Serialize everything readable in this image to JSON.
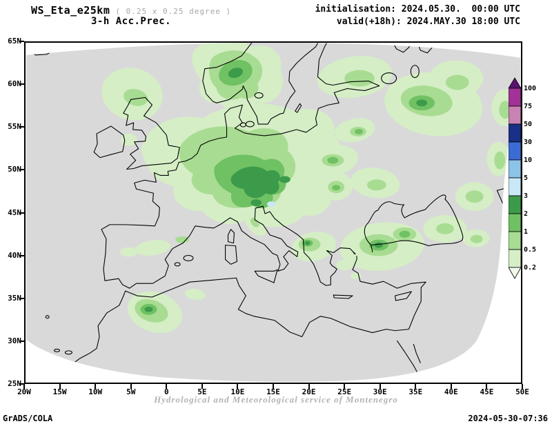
{
  "header": {
    "model": "WS_Eta_e25km",
    "grid": "( 0.25 x 0.25 degree )",
    "product": "3-h Acc.Prec.",
    "init_line": "initialisation: 2024.05.30.  00:00 UTC",
    "valid_line": "valid(+18h): 2024.MAY.30 18:00 UTC"
  },
  "map": {
    "lat_labels": [
      "65N",
      "60N",
      "55N",
      "50N",
      "45N",
      "40N",
      "35N",
      "30N",
      "25N"
    ],
    "lon_labels": [
      "20W",
      "15W",
      "10W",
      "5W",
      "0",
      "5E",
      "10E",
      "15E",
      "20E",
      "25E",
      "30E",
      "35E",
      "40E",
      "45E",
      "50E"
    ],
    "background_color": "#d9d9d9",
    "coastline_color": "#000000"
  },
  "colorbar": {
    "boundary_labels_top_to_bottom": [
      "100",
      "75",
      "50",
      "30",
      "10",
      "5",
      "3",
      "2",
      "1",
      "0.5",
      "0.2"
    ],
    "colors_top_to_bottom": [
      "#5a1070",
      "#a23297",
      "#c883b4",
      "#1a2f86",
      "#3b6cd4",
      "#8cc3e8",
      "#c9e8f5",
      "#3c9b4a",
      "#6fc163",
      "#a8dc92",
      "#d5eec6",
      "#f0f9ec"
    ]
  },
  "footer": {
    "watermark": "Hydrological and Meteorological service of Montenegro",
    "credit": "GrADS/COLA",
    "timestamp": "2024-05-30-07:36"
  }
}
